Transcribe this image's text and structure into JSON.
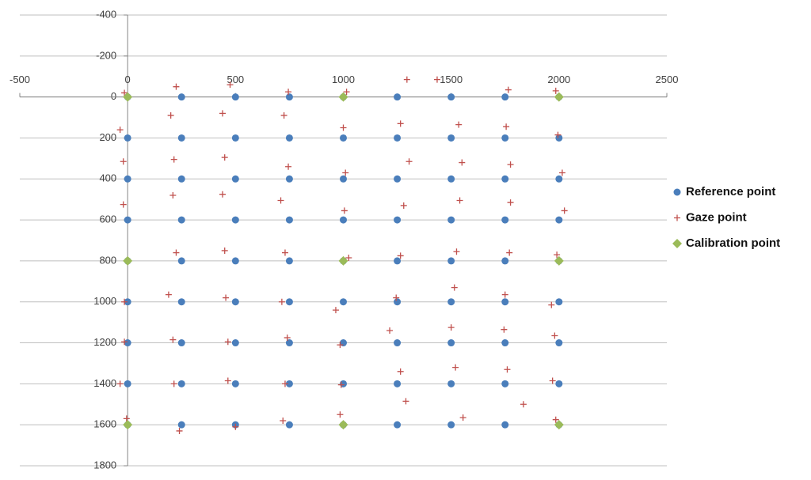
{
  "chart_data": {
    "type": "scatter",
    "xlim": [
      -500,
      2500
    ],
    "xticks": [
      -500,
      0,
      500,
      1000,
      1500,
      2000,
      2500
    ],
    "ylim": [
      -400,
      1800
    ],
    "yticks": [
      -400,
      -200,
      0,
      200,
      400,
      600,
      800,
      1000,
      1200,
      1400,
      1600,
      1800
    ],
    "y_inverted": true,
    "grid": true,
    "legend": "right",
    "series": [
      {
        "name": "Reference point",
        "color": "#4a7ebb",
        "marker": "circle",
        "x": [
          0,
          250,
          500,
          750,
          1000,
          1250,
          1500,
          1750,
          2000,
          0,
          250,
          500,
          750,
          1000,
          1250,
          1500,
          1750,
          2000,
          0,
          250,
          500,
          750,
          1000,
          1250,
          1500,
          1750,
          2000,
          0,
          250,
          500,
          750,
          1000,
          1250,
          1500,
          1750,
          2000,
          0,
          250,
          500,
          750,
          1000,
          1250,
          1500,
          1750,
          2000,
          0,
          250,
          500,
          750,
          1000,
          1250,
          1500,
          1750,
          2000,
          0,
          250,
          500,
          750,
          1000,
          1250,
          1500,
          1750,
          2000,
          0,
          250,
          500,
          750,
          1000,
          1250,
          1500,
          1750,
          2000,
          0,
          250,
          500,
          750,
          1000,
          1250,
          1500,
          1750,
          2000
        ],
        "values": [
          0,
          0,
          0,
          0,
          0,
          0,
          0,
          0,
          0,
          200,
          200,
          200,
          200,
          200,
          200,
          200,
          200,
          200,
          400,
          400,
          400,
          400,
          400,
          400,
          400,
          400,
          400,
          600,
          600,
          600,
          600,
          600,
          600,
          600,
          600,
          600,
          800,
          800,
          800,
          800,
          800,
          800,
          800,
          800,
          800,
          1000,
          1000,
          1000,
          1000,
          1000,
          1000,
          1000,
          1000,
          1000,
          1200,
          1200,
          1200,
          1200,
          1200,
          1200,
          1200,
          1200,
          1200,
          1400,
          1400,
          1400,
          1400,
          1400,
          1400,
          1400,
          1400,
          1400,
          1600,
          1600,
          1600,
          1600,
          1600,
          1600,
          1600,
          1600,
          1600
        ]
      },
      {
        "name": "Gaze point",
        "color": "#c0504d",
        "marker": "plus",
        "x": [
          -15,
          225,
          475,
          745,
          1015,
          1295,
          1435,
          1765,
          1985,
          -35,
          200,
          440,
          725,
          1000,
          1265,
          1535,
          1755,
          1995,
          -20,
          215,
          450,
          745,
          1010,
          1305,
          1550,
          1775,
          2015,
          -20,
          210,
          440,
          710,
          1005,
          1280,
          1540,
          1775,
          2025,
          -5,
          225,
          450,
          730,
          1025,
          1265,
          1525,
          1770,
          1990,
          -15,
          190,
          455,
          715,
          965,
          1245,
          1515,
          1750,
          1965,
          -15,
          210,
          465,
          740,
          985,
          1215,
          1500,
          1745,
          1980,
          -35,
          215,
          465,
          730,
          990,
          1265,
          1520,
          1760,
          1970,
          -5,
          240,
          500,
          720,
          985,
          1290,
          1555,
          1835,
          1985
        ],
        "values": [
          -20,
          -50,
          -60,
          -25,
          -25,
          -85,
          -85,
          -35,
          -30,
          160,
          90,
          80,
          90,
          150,
          130,
          135,
          145,
          185,
          315,
          305,
          295,
          340,
          370,
          315,
          320,
          330,
          370,
          525,
          480,
          475,
          505,
          555,
          530,
          505,
          515,
          555,
          800,
          760,
          750,
          760,
          785,
          775,
          755,
          760,
          770,
          1000,
          965,
          980,
          1000,
          1040,
          980,
          930,
          965,
          1015,
          1195,
          1185,
          1195,
          1175,
          1210,
          1140,
          1125,
          1135,
          1165,
          1400,
          1400,
          1385,
          1400,
          1405,
          1340,
          1320,
          1330,
          1385,
          1570,
          1630,
          1610,
          1580,
          1550,
          1485,
          1565,
          1500,
          1575
        ]
      },
      {
        "name": "Calibration point",
        "color": "#9bbb59",
        "marker": "diamond",
        "x": [
          0,
          1000,
          2000,
          0,
          1000,
          2000,
          0,
          1000,
          2000
        ],
        "values": [
          0,
          0,
          0,
          800,
          800,
          800,
          1600,
          1600,
          1600
        ]
      }
    ]
  }
}
